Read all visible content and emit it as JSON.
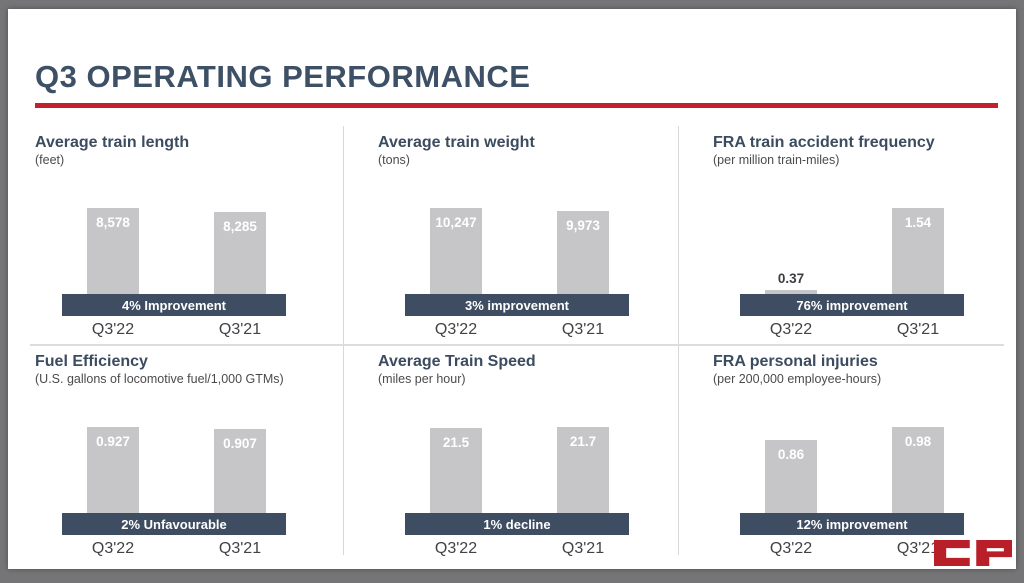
{
  "slide": {
    "title": "Q3 OPERATING PERFORMANCE"
  },
  "logo": {
    "name": "CP",
    "color": "#b91f28"
  },
  "colors": {
    "accent_red": "#c2202f",
    "banner_bg": "#3e4d61",
    "bar_fill": "#c6c6c8",
    "heading_text": "#3e5066",
    "frame_gray": "#757577"
  },
  "chart_data": [
    {
      "type": "bar",
      "title": "Average train length",
      "subtitle": "(feet)",
      "categories": [
        "Q3'22",
        "Q3'21"
      ],
      "values": [
        8578,
        8285
      ],
      "value_labels": [
        "8,578",
        "8,285"
      ],
      "banner": "4% Improvement",
      "ylim": [
        0,
        8578
      ],
      "grid": false,
      "legend": false
    },
    {
      "type": "bar",
      "title": "Average train weight",
      "subtitle": "(tons)",
      "categories": [
        "Q3'22",
        "Q3'21"
      ],
      "values": [
        10247,
        9973
      ],
      "value_labels": [
        "10,247",
        "9,973"
      ],
      "banner": "3% improvement",
      "ylim": [
        0,
        10247
      ],
      "grid": false,
      "legend": false
    },
    {
      "type": "bar",
      "title": "FRA train accident frequency",
      "subtitle": "(per million train-miles)",
      "categories": [
        "Q3'22",
        "Q3'21"
      ],
      "values": [
        0.37,
        1.54
      ],
      "value_labels": [
        "0.37",
        "1.54"
      ],
      "banner": "76% improvement",
      "ylim": [
        0,
        1.54
      ],
      "grid": false,
      "legend": false
    },
    {
      "type": "bar",
      "title": "Fuel Efficiency",
      "subtitle": "(U.S. gallons of locomotive fuel/1,000 GTMs)",
      "categories": [
        "Q3'22",
        "Q3'21"
      ],
      "values": [
        0.927,
        0.907
      ],
      "value_labels": [
        "0.927",
        "0.907"
      ],
      "banner": "2% Unfavourable",
      "ylim": [
        0,
        0.927
      ],
      "grid": false,
      "legend": false
    },
    {
      "type": "bar",
      "title": "Average Train Speed",
      "subtitle": "(miles per hour)",
      "categories": [
        "Q3'22",
        "Q3'21"
      ],
      "values": [
        21.5,
        21.7
      ],
      "value_labels": [
        "21.5",
        "21.7"
      ],
      "banner": "1% decline",
      "ylim": [
        0,
        21.7
      ],
      "grid": false,
      "legend": false
    },
    {
      "type": "bar",
      "title": "FRA personal injuries",
      "subtitle": "(per 200,000 employee-hours)",
      "categories": [
        "Q3'22",
        "Q3'21"
      ],
      "values": [
        0.86,
        0.98
      ],
      "value_labels": [
        "0.86",
        "0.98"
      ],
      "banner": "12% improvement",
      "ylim": [
        0,
        0.98
      ],
      "grid": false,
      "legend": false
    }
  ]
}
